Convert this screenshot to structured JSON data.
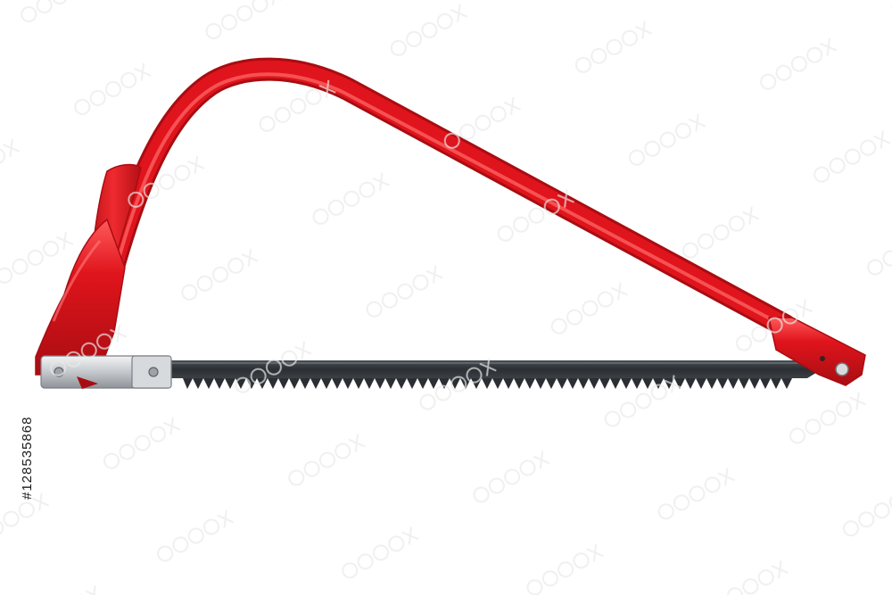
{
  "image": {
    "subject": "bow-saw",
    "background_color": "#ffffff",
    "frame_color": "#e0141c",
    "frame_highlight_color": "#ff6b6b",
    "frame_shadow_color": "#a80d12",
    "blade_color": "#2f3338",
    "fitting_color": "#c9ccd0"
  },
  "side_text": "#128535868"
}
